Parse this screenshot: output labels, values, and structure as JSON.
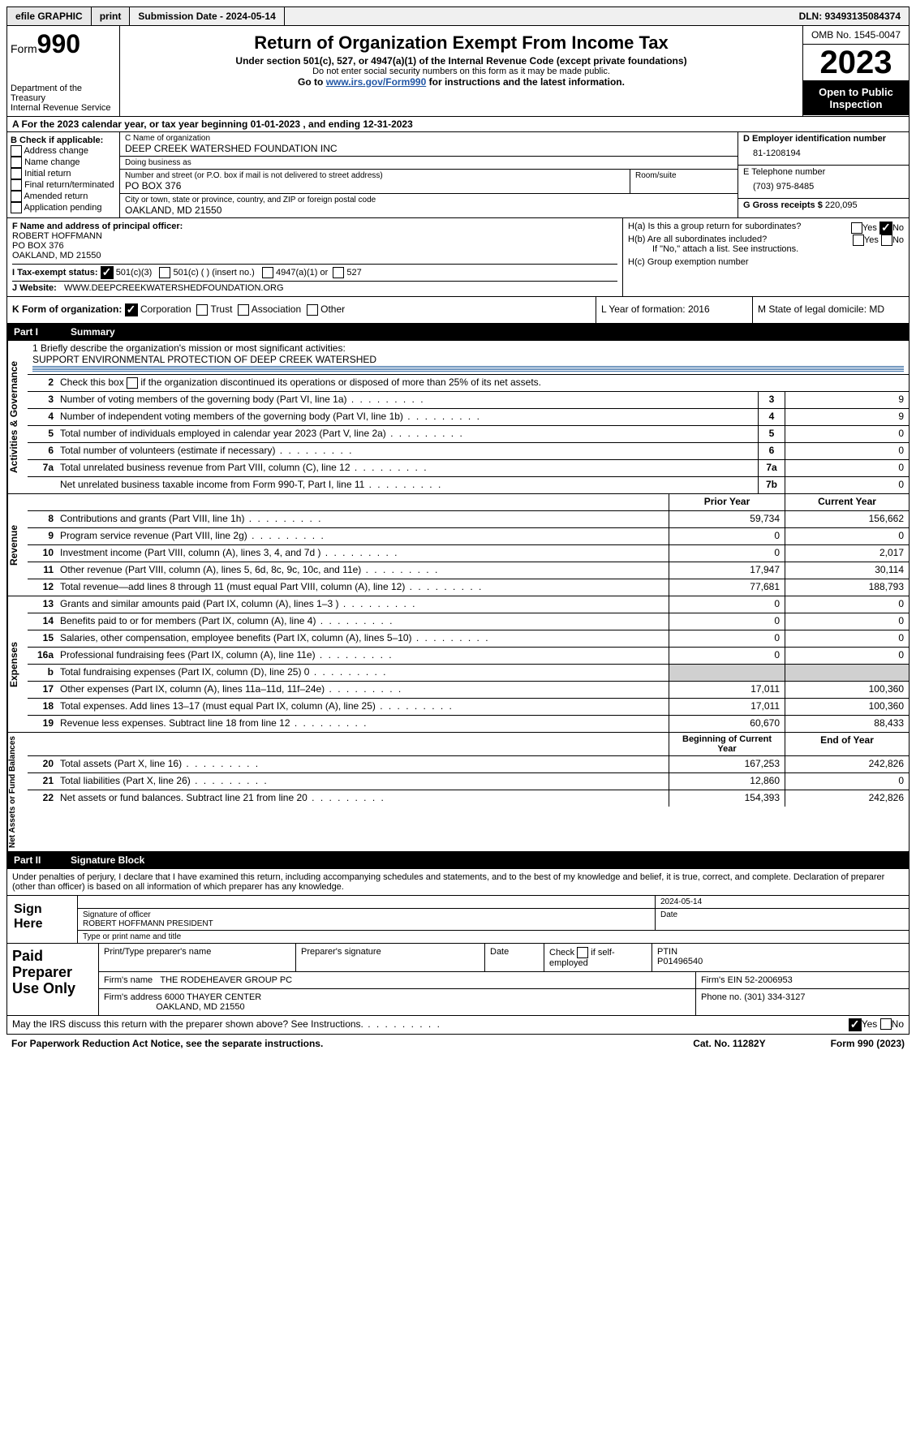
{
  "topbar": {
    "efile": "efile GRAPHIC",
    "print": "print",
    "submission": "Submission Date - 2024-05-14",
    "dln": "DLN: 93493135084374"
  },
  "header": {
    "form_label": "Form",
    "form_number": "990",
    "title": "Return of Organization Exempt From Income Tax",
    "subtitle": "Under section 501(c), 527, or 4947(a)(1) of the Internal Revenue Code (except private foundations)",
    "subtitle2": "Do not enter social security numbers on this form as it may be made public.",
    "goto_prefix": "Go to ",
    "goto_link": "www.irs.gov/Form990",
    "goto_suffix": " for instructions and the latest information.",
    "dept": "Department of the Treasury\nInternal Revenue Service",
    "omb": "OMB No. 1545-0047",
    "year": "2023",
    "open_public": "Open to Public Inspection"
  },
  "line_a": "A For the 2023 calendar year, or tax year beginning 01-01-2023   , and ending 12-31-2023",
  "col_b": {
    "label": "B Check if applicable:",
    "opts": [
      "Address change",
      "Name change",
      "Initial return",
      "Final return/terminated",
      "Amended return",
      "Application pending"
    ]
  },
  "col_c": {
    "name_label": "C Name of organization",
    "name": "DEEP CREEK WATERSHED FOUNDATION INC",
    "dba_label": "Doing business as",
    "dba": "",
    "street_label": "Number and street (or P.O. box if mail is not delivered to street address)",
    "street": "PO BOX 376",
    "room_label": "Room/suite",
    "city_label": "City or town, state or province, country, and ZIP or foreign postal code",
    "city": "OAKLAND, MD  21550"
  },
  "col_d": {
    "ein_label": "D Employer identification number",
    "ein": "81-1208194",
    "phone_label": "E Telephone number",
    "phone": "(703) 975-8485",
    "gross_label": "G Gross receipts $",
    "gross": "220,095"
  },
  "section_f": {
    "label": "F  Name and address of principal officer:",
    "name": "ROBERT HOFFMANN",
    "street": "PO BOX 376",
    "city": "OAKLAND, MD  21550"
  },
  "section_h": {
    "ha": "H(a)  Is this a group return for subordinates?",
    "hb": "H(b)  Are all subordinates included?",
    "hb_note": "If \"No,\" attach a list. See instructions.",
    "hc": "H(c)  Group exemption number"
  },
  "section_i": {
    "label": "I   Tax-exempt status:",
    "opt1": "501(c)(3)",
    "opt2": "501(c) (  ) (insert no.)",
    "opt3": "4947(a)(1) or",
    "opt4": "527"
  },
  "section_j": {
    "label": "J   Website:",
    "value": "WWW.DEEPCREEKWATERSHEDFOUNDATION.ORG"
  },
  "section_k": {
    "label": "K Form of organization:",
    "opts": [
      "Corporation",
      "Trust",
      "Association",
      "Other"
    ]
  },
  "section_l": "L Year of formation: 2016",
  "section_m": "M State of legal domicile: MD",
  "part1": {
    "label": "Part I",
    "title": "Summary"
  },
  "mission": {
    "q": "1   Briefly describe the organization's mission or most significant activities:",
    "a": "SUPPORT ENVIRONMENTAL PROTECTION OF DEEP CREEK WATERSHED"
  },
  "governance": {
    "label": "Activities & Governance",
    "l2": "Check this box        if the organization discontinued its operations or disposed of more than 25% of its net assets.",
    "rows": [
      {
        "n": "3",
        "d": "Number of voting members of the governing body (Part VI, line 1a)",
        "b": "3",
        "v": "9"
      },
      {
        "n": "4",
        "d": "Number of independent voting members of the governing body (Part VI, line 1b)",
        "b": "4",
        "v": "9"
      },
      {
        "n": "5",
        "d": "Total number of individuals employed in calendar year 2023 (Part V, line 2a)",
        "b": "5",
        "v": "0"
      },
      {
        "n": "6",
        "d": "Total number of volunteers (estimate if necessary)",
        "b": "6",
        "v": "0"
      },
      {
        "n": "7a",
        "d": "Total unrelated business revenue from Part VIII, column (C), line 12",
        "b": "7a",
        "v": "0"
      },
      {
        "n": "",
        "d": "Net unrelated business taxable income from Form 990-T, Part I, line 11",
        "b": "7b",
        "v": "0"
      }
    ]
  },
  "revenue": {
    "label": "Revenue",
    "header_prior": "Prior Year",
    "header_current": "Current Year",
    "rows": [
      {
        "n": "8",
        "d": "Contributions and grants (Part VIII, line 1h)",
        "p": "59,734",
        "c": "156,662"
      },
      {
        "n": "9",
        "d": "Program service revenue (Part VIII, line 2g)",
        "p": "0",
        "c": "0"
      },
      {
        "n": "10",
        "d": "Investment income (Part VIII, column (A), lines 3, 4, and 7d )",
        "p": "0",
        "c": "2,017"
      },
      {
        "n": "11",
        "d": "Other revenue (Part VIII, column (A), lines 5, 6d, 8c, 9c, 10c, and 11e)",
        "p": "17,947",
        "c": "30,114"
      },
      {
        "n": "12",
        "d": "Total revenue—add lines 8 through 11 (must equal Part VIII, column (A), line 12)",
        "p": "77,681",
        "c": "188,793"
      }
    ]
  },
  "expenses": {
    "label": "Expenses",
    "rows": [
      {
        "n": "13",
        "d": "Grants and similar amounts paid (Part IX, column (A), lines 1–3 )",
        "p": "0",
        "c": "0"
      },
      {
        "n": "14",
        "d": "Benefits paid to or for members (Part IX, column (A), line 4)",
        "p": "0",
        "c": "0"
      },
      {
        "n": "15",
        "d": "Salaries, other compensation, employee benefits (Part IX, column (A), lines 5–10)",
        "p": "0",
        "c": "0"
      },
      {
        "n": "16a",
        "d": "Professional fundraising fees (Part IX, column (A), line 11e)",
        "p": "0",
        "c": "0"
      },
      {
        "n": "b",
        "d": "Total fundraising expenses (Part IX, column (D), line 25) 0",
        "p": "",
        "c": "",
        "shaded": true
      },
      {
        "n": "17",
        "d": "Other expenses (Part IX, column (A), lines 11a–11d, 11f–24e)",
        "p": "17,011",
        "c": "100,360"
      },
      {
        "n": "18",
        "d": "Total expenses. Add lines 13–17 (must equal Part IX, column (A), line 25)",
        "p": "17,011",
        "c": "100,360"
      },
      {
        "n": "19",
        "d": "Revenue less expenses. Subtract line 18 from line 12",
        "p": "60,670",
        "c": "88,433"
      }
    ]
  },
  "netassets": {
    "label": "Net Assets or Fund Balances",
    "header_begin": "Beginning of Current Year",
    "header_end": "End of Year",
    "rows": [
      {
        "n": "20",
        "d": "Total assets (Part X, line 16)",
        "p": "167,253",
        "c": "242,826"
      },
      {
        "n": "21",
        "d": "Total liabilities (Part X, line 26)",
        "p": "12,860",
        "c": "0"
      },
      {
        "n": "22",
        "d": "Net assets or fund balances. Subtract line 21 from line 20",
        "p": "154,393",
        "c": "242,826"
      }
    ]
  },
  "part2": {
    "label": "Part II",
    "title": "Signature Block"
  },
  "penalty": "Under penalties of perjury, I declare that I have examined this return, including accompanying schedules and statements, and to the best of my knowledge and belief, it is true, correct, and complete. Declaration of preparer (other than officer) is based on all information of which preparer has any knowledge.",
  "sign": {
    "side": "Sign Here",
    "date": "2024-05-14",
    "sig_label": "Signature of officer",
    "officer": "ROBERT HOFFMANN  PRESIDENT",
    "type_label": "Type or print name and title",
    "date_label": "Date"
  },
  "preparer": {
    "side": "Paid Preparer Use Only",
    "h1": "Print/Type preparer's name",
    "h2": "Preparer's signature",
    "h3": "Date",
    "h4": "Check         if self-employed",
    "h5_label": "PTIN",
    "h5": "P01496540",
    "firm_label": "Firm's name",
    "firm": "THE RODEHEAVER GROUP PC",
    "firm_ein_label": "Firm's EIN",
    "firm_ein": "52-2006953",
    "addr_label": "Firm's address",
    "addr1": "6000 THAYER CENTER",
    "addr2": "OAKLAND, MD  21550",
    "phone_label": "Phone no.",
    "phone": "(301) 334-3127"
  },
  "discuss": "May the IRS discuss this return with the preparer shown above? See Instructions.",
  "footer": {
    "paperwork": "For Paperwork Reduction Act Notice, see the separate instructions.",
    "cat": "Cat. No. 11282Y",
    "form": "Form 990 (2023)"
  },
  "yes": "Yes",
  "no": "No"
}
